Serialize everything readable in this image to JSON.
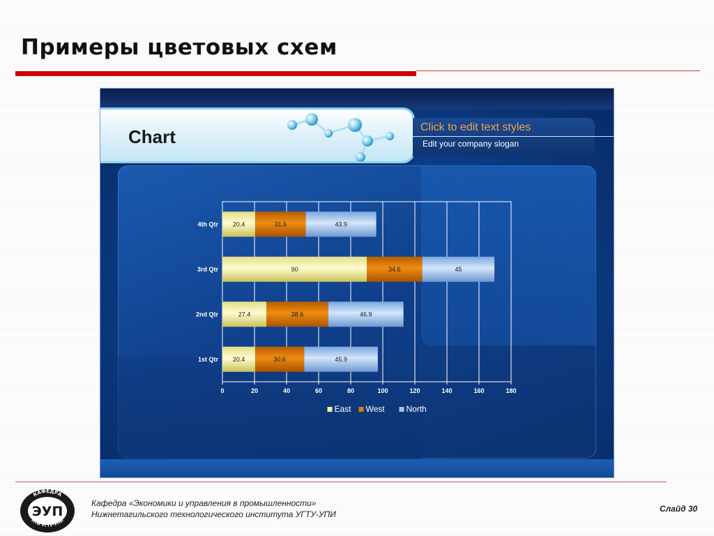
{
  "slide": {
    "title": "Примеры цветовых схем",
    "footer_line1": "Кафедра «Экономики и управления в промышленности»",
    "footer_line2": "Нижнетагильского технологического института УГТУ-УПИ",
    "number": "Слайд 30",
    "logo_text": "ЭУП",
    "logo_ring_top": "КАФЕДРА",
    "logo_ring_bottom": "НТИ УГТУ-УПИ"
  },
  "template": {
    "heading": "Chart",
    "subtitle": "Click to edit text styles",
    "slogan": "Edit your company slogan"
  },
  "colors": {
    "accent_red": "#cc0000",
    "east": "#f3f0a6",
    "west": "#d97b06",
    "north": "#9fc2ec"
  },
  "chart_data": {
    "type": "bar",
    "orientation": "horizontal",
    "stacked": true,
    "categories": [
      "1st Qtr",
      "2nd Qtr",
      "3rd Qtr",
      "4th Qtr"
    ],
    "series": [
      {
        "name": "East",
        "values": [
          20.4,
          27.4,
          90,
          20.4
        ]
      },
      {
        "name": "West",
        "values": [
          30.6,
          38.6,
          34.6,
          31.6
        ]
      },
      {
        "name": "North",
        "values": [
          45.9,
          46.9,
          45,
          43.9
        ]
      }
    ],
    "xlim": [
      0,
      180
    ],
    "xticks": [
      0,
      20,
      40,
      60,
      80,
      100,
      120,
      140,
      160,
      180
    ],
    "grid": true,
    "legend": "bottom"
  }
}
